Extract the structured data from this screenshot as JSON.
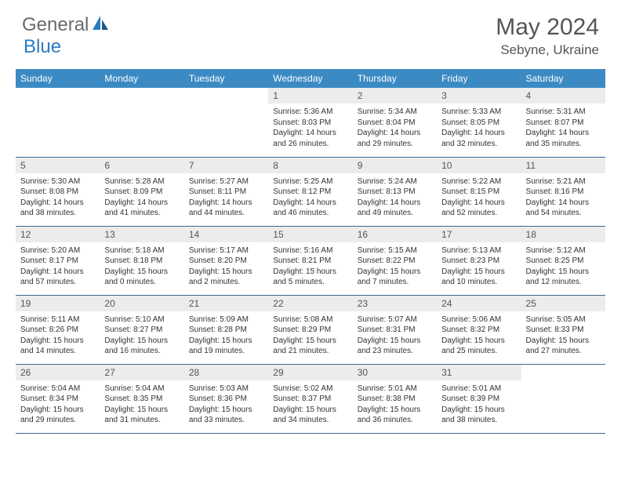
{
  "logo": {
    "part1": "General",
    "part2": "Blue"
  },
  "title": "May 2024",
  "location": "Sebyne, Ukraine",
  "colors": {
    "header_bg": "#3b8ac4",
    "header_text": "#ffffff",
    "daynum_bg": "#ececec",
    "border": "#3b6a93",
    "logo_gray": "#6a6a6a",
    "logo_blue": "#2b7bbf",
    "title_color": "#555555"
  },
  "weekdays": [
    "Sunday",
    "Monday",
    "Tuesday",
    "Wednesday",
    "Thursday",
    "Friday",
    "Saturday"
  ],
  "weeks": [
    [
      {
        "n": "",
        "sunrise": "",
        "sunset": "",
        "daylight": ""
      },
      {
        "n": "",
        "sunrise": "",
        "sunset": "",
        "daylight": ""
      },
      {
        "n": "",
        "sunrise": "",
        "sunset": "",
        "daylight": ""
      },
      {
        "n": "1",
        "sunrise": "Sunrise: 5:36 AM",
        "sunset": "Sunset: 8:03 PM",
        "daylight": "Daylight: 14 hours and 26 minutes."
      },
      {
        "n": "2",
        "sunrise": "Sunrise: 5:34 AM",
        "sunset": "Sunset: 8:04 PM",
        "daylight": "Daylight: 14 hours and 29 minutes."
      },
      {
        "n": "3",
        "sunrise": "Sunrise: 5:33 AM",
        "sunset": "Sunset: 8:05 PM",
        "daylight": "Daylight: 14 hours and 32 minutes."
      },
      {
        "n": "4",
        "sunrise": "Sunrise: 5:31 AM",
        "sunset": "Sunset: 8:07 PM",
        "daylight": "Daylight: 14 hours and 35 minutes."
      }
    ],
    [
      {
        "n": "5",
        "sunrise": "Sunrise: 5:30 AM",
        "sunset": "Sunset: 8:08 PM",
        "daylight": "Daylight: 14 hours and 38 minutes."
      },
      {
        "n": "6",
        "sunrise": "Sunrise: 5:28 AM",
        "sunset": "Sunset: 8:09 PM",
        "daylight": "Daylight: 14 hours and 41 minutes."
      },
      {
        "n": "7",
        "sunrise": "Sunrise: 5:27 AM",
        "sunset": "Sunset: 8:11 PM",
        "daylight": "Daylight: 14 hours and 44 minutes."
      },
      {
        "n": "8",
        "sunrise": "Sunrise: 5:25 AM",
        "sunset": "Sunset: 8:12 PM",
        "daylight": "Daylight: 14 hours and 46 minutes."
      },
      {
        "n": "9",
        "sunrise": "Sunrise: 5:24 AM",
        "sunset": "Sunset: 8:13 PM",
        "daylight": "Daylight: 14 hours and 49 minutes."
      },
      {
        "n": "10",
        "sunrise": "Sunrise: 5:22 AM",
        "sunset": "Sunset: 8:15 PM",
        "daylight": "Daylight: 14 hours and 52 minutes."
      },
      {
        "n": "11",
        "sunrise": "Sunrise: 5:21 AM",
        "sunset": "Sunset: 8:16 PM",
        "daylight": "Daylight: 14 hours and 54 minutes."
      }
    ],
    [
      {
        "n": "12",
        "sunrise": "Sunrise: 5:20 AM",
        "sunset": "Sunset: 8:17 PM",
        "daylight": "Daylight: 14 hours and 57 minutes."
      },
      {
        "n": "13",
        "sunrise": "Sunrise: 5:18 AM",
        "sunset": "Sunset: 8:18 PM",
        "daylight": "Daylight: 15 hours and 0 minutes."
      },
      {
        "n": "14",
        "sunrise": "Sunrise: 5:17 AM",
        "sunset": "Sunset: 8:20 PM",
        "daylight": "Daylight: 15 hours and 2 minutes."
      },
      {
        "n": "15",
        "sunrise": "Sunrise: 5:16 AM",
        "sunset": "Sunset: 8:21 PM",
        "daylight": "Daylight: 15 hours and 5 minutes."
      },
      {
        "n": "16",
        "sunrise": "Sunrise: 5:15 AM",
        "sunset": "Sunset: 8:22 PM",
        "daylight": "Daylight: 15 hours and 7 minutes."
      },
      {
        "n": "17",
        "sunrise": "Sunrise: 5:13 AM",
        "sunset": "Sunset: 8:23 PM",
        "daylight": "Daylight: 15 hours and 10 minutes."
      },
      {
        "n": "18",
        "sunrise": "Sunrise: 5:12 AM",
        "sunset": "Sunset: 8:25 PM",
        "daylight": "Daylight: 15 hours and 12 minutes."
      }
    ],
    [
      {
        "n": "19",
        "sunrise": "Sunrise: 5:11 AM",
        "sunset": "Sunset: 8:26 PM",
        "daylight": "Daylight: 15 hours and 14 minutes."
      },
      {
        "n": "20",
        "sunrise": "Sunrise: 5:10 AM",
        "sunset": "Sunset: 8:27 PM",
        "daylight": "Daylight: 15 hours and 16 minutes."
      },
      {
        "n": "21",
        "sunrise": "Sunrise: 5:09 AM",
        "sunset": "Sunset: 8:28 PM",
        "daylight": "Daylight: 15 hours and 19 minutes."
      },
      {
        "n": "22",
        "sunrise": "Sunrise: 5:08 AM",
        "sunset": "Sunset: 8:29 PM",
        "daylight": "Daylight: 15 hours and 21 minutes."
      },
      {
        "n": "23",
        "sunrise": "Sunrise: 5:07 AM",
        "sunset": "Sunset: 8:31 PM",
        "daylight": "Daylight: 15 hours and 23 minutes."
      },
      {
        "n": "24",
        "sunrise": "Sunrise: 5:06 AM",
        "sunset": "Sunset: 8:32 PM",
        "daylight": "Daylight: 15 hours and 25 minutes."
      },
      {
        "n": "25",
        "sunrise": "Sunrise: 5:05 AM",
        "sunset": "Sunset: 8:33 PM",
        "daylight": "Daylight: 15 hours and 27 minutes."
      }
    ],
    [
      {
        "n": "26",
        "sunrise": "Sunrise: 5:04 AM",
        "sunset": "Sunset: 8:34 PM",
        "daylight": "Daylight: 15 hours and 29 minutes."
      },
      {
        "n": "27",
        "sunrise": "Sunrise: 5:04 AM",
        "sunset": "Sunset: 8:35 PM",
        "daylight": "Daylight: 15 hours and 31 minutes."
      },
      {
        "n": "28",
        "sunrise": "Sunrise: 5:03 AM",
        "sunset": "Sunset: 8:36 PM",
        "daylight": "Daylight: 15 hours and 33 minutes."
      },
      {
        "n": "29",
        "sunrise": "Sunrise: 5:02 AM",
        "sunset": "Sunset: 8:37 PM",
        "daylight": "Daylight: 15 hours and 34 minutes."
      },
      {
        "n": "30",
        "sunrise": "Sunrise: 5:01 AM",
        "sunset": "Sunset: 8:38 PM",
        "daylight": "Daylight: 15 hours and 36 minutes."
      },
      {
        "n": "31",
        "sunrise": "Sunrise: 5:01 AM",
        "sunset": "Sunset: 8:39 PM",
        "daylight": "Daylight: 15 hours and 38 minutes."
      },
      {
        "n": "",
        "sunrise": "",
        "sunset": "",
        "daylight": ""
      }
    ]
  ]
}
